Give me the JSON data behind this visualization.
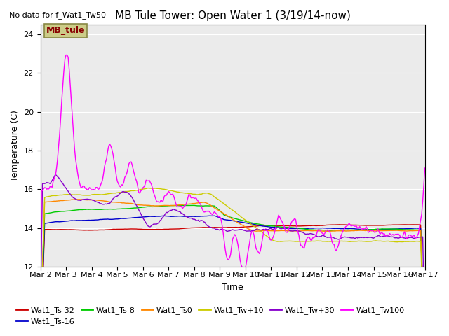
{
  "title": "MB Tule Tower: Open Water 1 (3/19/14-now)",
  "subtitle": "No data for f_Wat1_Tw50",
  "xlabel": "Time",
  "ylabel": "Temperature (C)",
  "ylim": [
    12,
    24.5
  ],
  "yticks": [
    12,
    14,
    16,
    18,
    20,
    22,
    24
  ],
  "x_labels": [
    "Mar 2",
    "Mar 3",
    "Mar 4",
    "Mar 5",
    "Mar 6",
    "Mar 7",
    "Mar 8",
    "Mar 9",
    "Mar 10",
    "Mar 11",
    "Mar 12",
    "Mar 13",
    "Mar 14",
    "Mar 15",
    "Mar 16",
    "Mar 17"
  ],
  "n_points": 361,
  "series_colors": {
    "Wat1_Ts-32": "#cc0000",
    "Wat1_Ts-16": "#0000cc",
    "Wat1_Ts-8": "#00cc00",
    "Wat1_Ts0": "#ff8800",
    "Wat1_Tw+10": "#cccc00",
    "Wat1_Tw+30": "#8800cc",
    "Wat1_Tw100": "#ff00ff"
  },
  "legend_label": "MB_tule",
  "legend_box_facecolor": "#cccc88",
  "legend_box_edgecolor": "#888844",
  "legend_text_color": "#880000",
  "plot_bg": "#ebebeb",
  "fig_bg": "#ffffff"
}
